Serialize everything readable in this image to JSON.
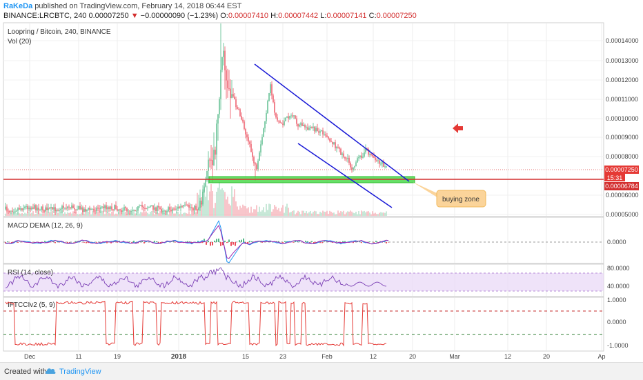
{
  "header": {
    "author": "RaKeDa",
    "published": "published on TradingView.com, February 14, 2018 06:44 EST",
    "symbol": "BINANCE:LRCBTC, 240",
    "last": "0.00007250",
    "change": "−0.00000090 (−1.23%)",
    "o_label": "O:",
    "o": "0.00007410",
    "h_label": "H:",
    "h": "0.00007442",
    "l_label": "L:",
    "l": "0.00007141",
    "c_label": "C:",
    "c": "0.00007250"
  },
  "main_pane": {
    "title": "Loopring / Bitcoin, 240, BINANCE",
    "vol_label": "Vol (20)",
    "price_badge": "0.00007250",
    "countdown_badge": "15:31",
    "support_badge": "0.00006784",
    "annotation": "buying zone"
  },
  "panes": {
    "macd_title": "MACD DEMA (12, 26, 9)",
    "rsi_title": "RSI (14, close)",
    "ift_title": "IFTCCIv2 (5, 9)"
  },
  "footer": {
    "created": "Created with",
    "brand": "TradingView"
  },
  "colors": {
    "up": "#53b987",
    "down": "#eb4d5c",
    "support_line": "#d32f2f",
    "channel": "#1a1ad6",
    "zone": "#4cd94c",
    "macd": "#2196f3",
    "signal": "#9c27b0",
    "rsi": "#7b3fb5",
    "ift": "#e53935",
    "annotation_bg": "#fbd49a"
  },
  "chart_data": [
    {
      "type": "candlestick",
      "title": "Loopring / Bitcoin, 240, BINANCE",
      "x_ticks": [
        "Dec",
        "11",
        "19",
        "2018",
        "15",
        "23",
        "Feb",
        "12",
        "20",
        "Mar",
        "12",
        "20",
        "Ap"
      ],
      "y_ticks": [
        "0.00014000",
        "0.00013000",
        "0.00012000",
        "0.00011000",
        "0.00010000",
        "0.00009000",
        "0.00008000",
        "0.00006000",
        "0.00005000"
      ],
      "ylim": [
        4.5e-05,
        0.00015
      ],
      "last_price": 7.25e-05,
      "support_level": 6.784e-05,
      "channel_upper": [
        [
          0.2,
          0.000128
        ],
        [
          1.0,
          6.65e-05
        ]
      ],
      "channel_lower": [
        [
          0.39,
          8.7e-05
        ],
        [
          1.0,
          5.13e-05
        ]
      ],
      "buying_zone": [
        6.72e-05,
        6.92e-05
      ]
    },
    {
      "type": "line",
      "title": "MACD DEMA (12, 26, 9)",
      "y_ticks": [
        "0.0000"
      ]
    },
    {
      "type": "line",
      "title": "RSI (14, close)",
      "y_ticks": [
        "80.0000",
        "40.0000"
      ],
      "ylim": [
        20,
        100
      ]
    },
    {
      "type": "line",
      "title": "IFTCCIv2 (5, 9)",
      "y_ticks": [
        "1.0000",
        "0.0000",
        "-1.0000"
      ],
      "ylim": [
        -1.1,
        1.1
      ]
    }
  ]
}
